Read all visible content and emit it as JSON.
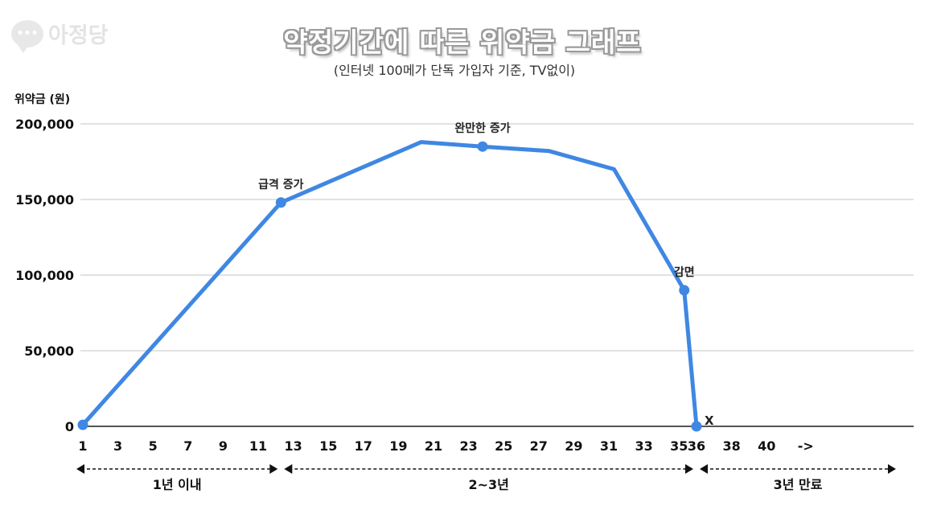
{
  "logo": {
    "text": "아정당",
    "icon": "chat-bubble-icon"
  },
  "chart_data": {
    "type": "line",
    "title": "약정기간에 따른 위약금 그래프",
    "subtitle": "(인터넷 100메가 단독 가입자 기준, TV없이)",
    "ylabel": "위약금 (원)",
    "xlabel": "",
    "ylim": [
      0,
      200000
    ],
    "xlim": [
      1,
      41
    ],
    "grid": true,
    "yticks": [
      {
        "value": 0,
        "label": "0"
      },
      {
        "value": 50000,
        "label": "50,000"
      },
      {
        "value": 100000,
        "label": "100,000"
      },
      {
        "value": 150000,
        "label": "150,000"
      },
      {
        "value": 200000,
        "label": "200,000"
      }
    ],
    "xticks": [
      "1",
      "3",
      "5",
      "7",
      "9",
      "11",
      "13",
      "15",
      "17",
      "19",
      "21",
      "23",
      "25",
      "27",
      "29",
      "31",
      "33",
      "35",
      "36",
      "38",
      "40"
    ],
    "xtick_suffix": "->",
    "series": [
      {
        "color": "#3f87e3",
        "points": [
          {
            "x": 1,
            "y": 1000
          },
          {
            "x": 12.3,
            "y": 148000
          },
          {
            "x": 20.3,
            "y": 188000
          },
          {
            "x": 23.8,
            "y": 185000
          },
          {
            "x": 27.6,
            "y": 182000
          },
          {
            "x": 31.3,
            "y": 170000
          },
          {
            "x": 35.3,
            "y": 90000
          },
          {
            "x": 36,
            "y": 0
          }
        ],
        "markers": [
          {
            "x": 1,
            "y": 1000
          },
          {
            "x": 12.3,
            "y": 148000
          },
          {
            "x": 23.8,
            "y": 185000
          },
          {
            "x": 35.3,
            "y": 90000
          },
          {
            "x": 36,
            "y": 0
          }
        ]
      }
    ],
    "annotations": [
      {
        "text": "급격 증가",
        "x": 12.3,
        "y": 148000
      },
      {
        "text": "완만한 증가",
        "x": 23.8,
        "y": 185000
      },
      {
        "text": "감면",
        "x": 35.3,
        "y": 90000
      },
      {
        "text": "X",
        "x": 36,
        "y": 0
      }
    ],
    "periods": [
      {
        "label": "1년 이내",
        "from": 1,
        "to": 12.3
      },
      {
        "label": "2~3년",
        "from": 12.3,
        "to": 36
      },
      {
        "label": "3년 만료",
        "from": 36,
        "to": 41
      }
    ]
  }
}
